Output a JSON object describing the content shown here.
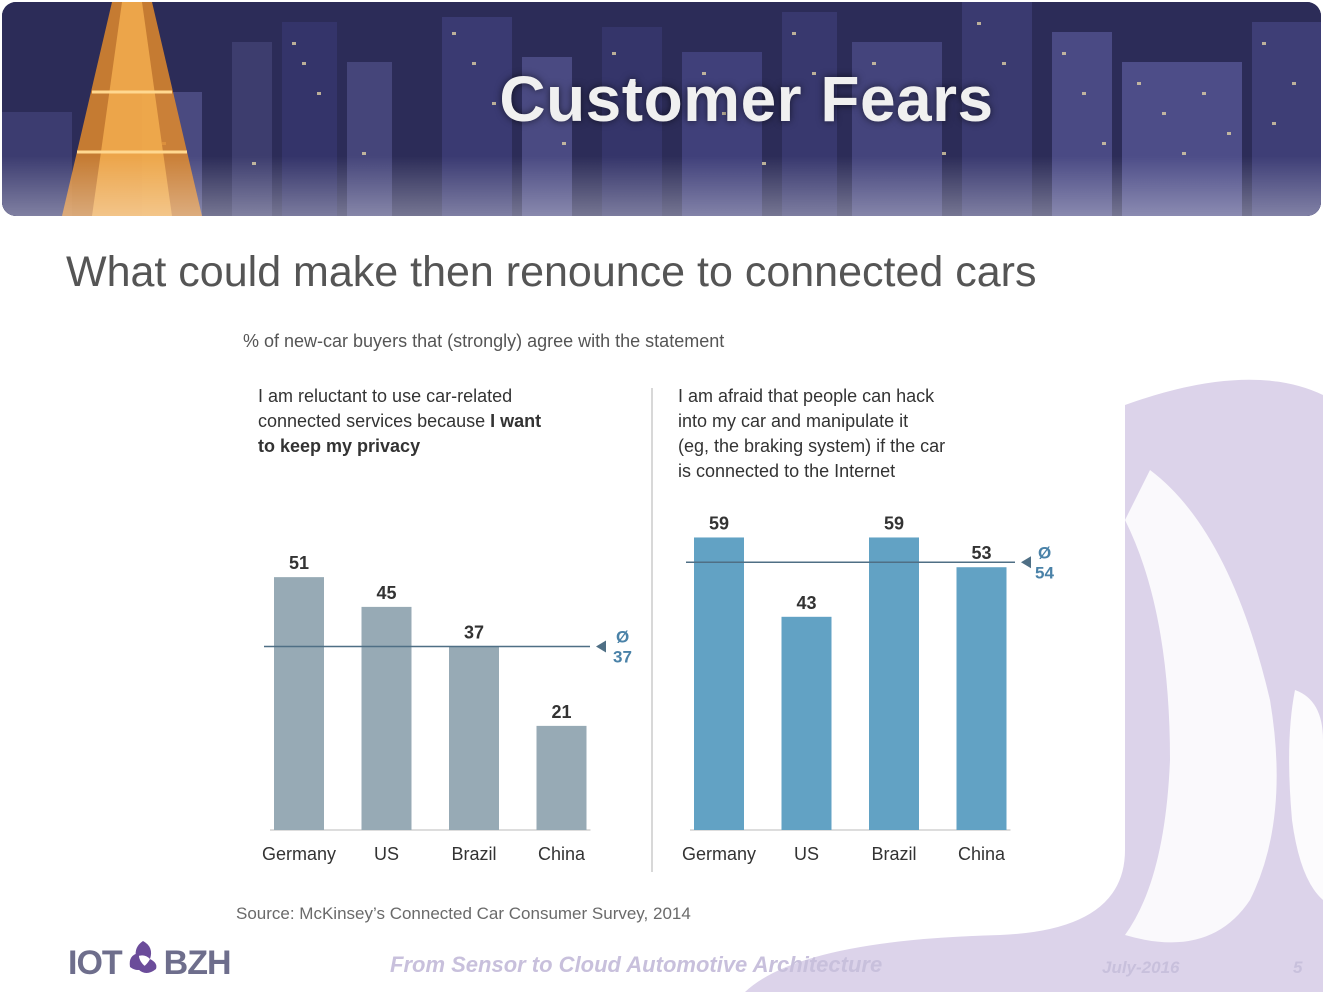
{
  "header": {
    "title": "Customer Fears"
  },
  "subtitle": "What could make then renounce to connected cars",
  "chart_data": [
    {
      "type": "bar",
      "header": "% of new-car buyers that (strongly) agree with the statement",
      "title_lines": [
        "I am reluctant to use car-related",
        "connected services because ",
        "I want",
        "to keep my privacy"
      ],
      "categories": [
        "Germany",
        "US",
        "Brazil",
        "China"
      ],
      "values": [
        51,
        45,
        37,
        21
      ],
      "average": {
        "symbol": "Ø",
        "value": 37,
        "label": "37"
      },
      "color": "#97aab5",
      "ylim": [
        0,
        60
      ]
    },
    {
      "type": "bar",
      "title_lines": [
        "I am afraid that people can hack",
        "into my car and manipulate it",
        "(eg, the braking system) if the car",
        "is connected to the Internet"
      ],
      "categories": [
        "Germany",
        "US",
        "Brazil",
        "China"
      ],
      "values": [
        59,
        43,
        59,
        53
      ],
      "average": {
        "symbol": "Ø",
        "value": 54,
        "label": "54"
      },
      "color": "#62a2c4",
      "ylim": [
        0,
        60
      ]
    }
  ],
  "source": "Source: McKinsey’s Connected Car Consumer Survey, 2014",
  "footer": {
    "logo_left": "IOT",
    "logo_right": "BZH",
    "center": "From Sensor to Cloud Automotive Architecture",
    "date": "July-2016",
    "page": "5"
  },
  "colors": {
    "title": "#f0f0f0",
    "subtitle": "#555555",
    "decor": "#dcd3ea",
    "axis_line": "#4f6f85"
  }
}
